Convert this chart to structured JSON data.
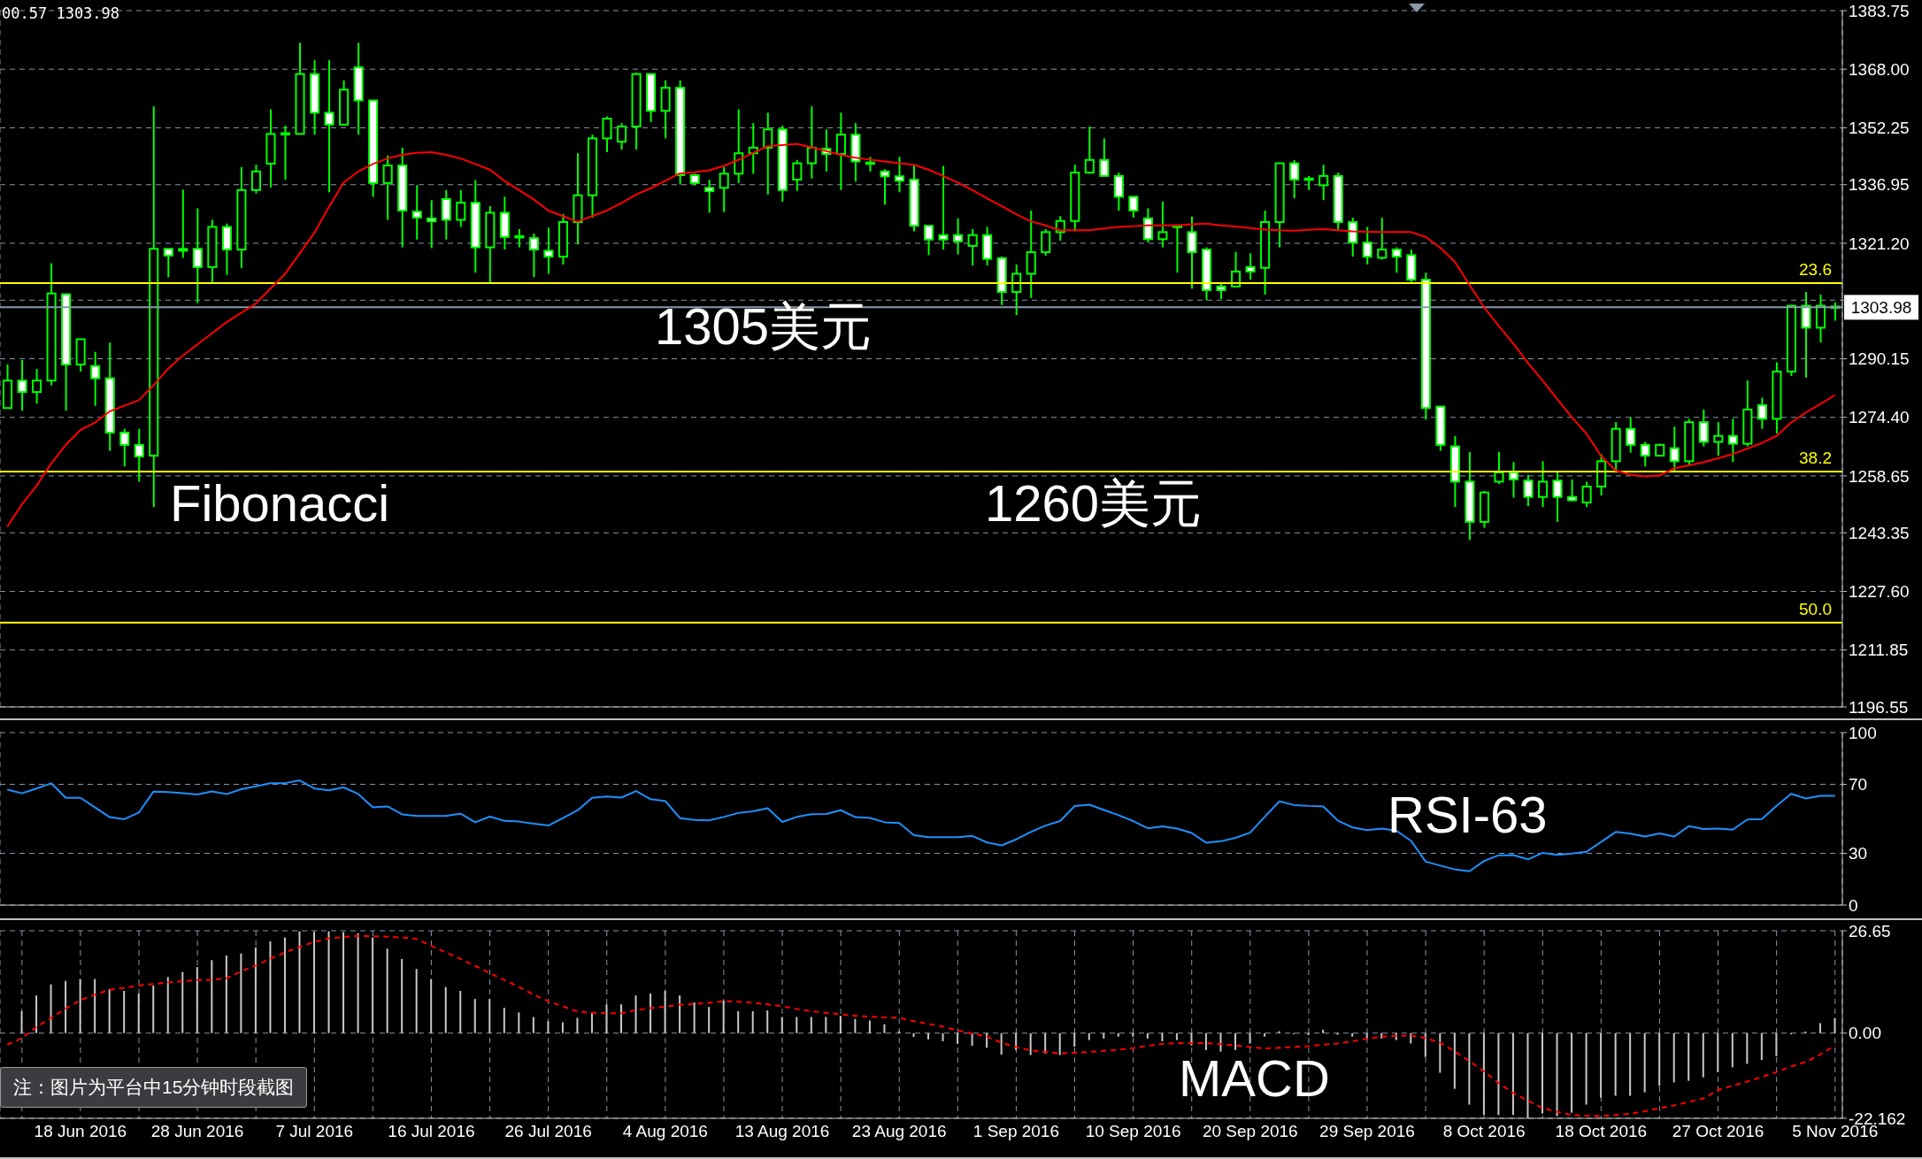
{
  "chart_data": [
    {
      "type": "candlestick",
      "color": "#00ff00",
      "categories": [
        null,
        null,
        null,
        null,
        null,
        null,
        null,
        null,
        null,
        null,
        null,
        null,
        null,
        null,
        null,
        null,
        null,
        null,
        null,
        null,
        null,
        null,
        null,
        null,
        null,
        null,
        null,
        null,
        null,
        null,
        null,
        null,
        null,
        null,
        null,
        null,
        null,
        null,
        null,
        null,
        null,
        null,
        null,
        null,
        null,
        null,
        null,
        null,
        null,
        null,
        null,
        null,
        null,
        null,
        null,
        null,
        null,
        null,
        null,
        null,
        null,
        null,
        null,
        null,
        null,
        null,
        null,
        null,
        null,
        null,
        null,
        null,
        null,
        null,
        null,
        null,
        null,
        null,
        null,
        null,
        null,
        null,
        null,
        null,
        null,
        null,
        null,
        null,
        null,
        null,
        null,
        null,
        null,
        null,
        null,
        null,
        null,
        null,
        null,
        null,
        null,
        null,
        null,
        null,
        null,
        null,
        null,
        null,
        null,
        null,
        null,
        null,
        null,
        null,
        null,
        null,
        null,
        null,
        null,
        null,
        null,
        null,
        null,
        null,
        null,
        null
      ],
      "ohlc": [
        [
          1276.9,
          1288.6,
          1276.9,
          1284.3
        ],
        [
          1284.3,
          1289.8,
          1276.2,
          1281.2
        ],
        [
          1281.2,
          1287.4,
          1278.1,
          1284.3
        ],
        [
          1284.3,
          1315.8,
          1283.0,
          1307.7
        ],
        [
          1307.5,
          1307.5,
          1276.2,
          1288.6
        ],
        [
          1288.6,
          1295.4,
          1286.7,
          1295.4
        ],
        [
          1288.2,
          1292.0,
          1277.5,
          1284.9
        ],
        [
          1284.9,
          1294.5,
          1265.4,
          1270.3
        ],
        [
          1270.3,
          1271.3,
          1261.2,
          1267.0
        ],
        [
          1267.0,
          1271.3,
          1257.1,
          1263.9
        ],
        [
          1264.1,
          1358.0,
          1250.3,
          1319.7
        ],
        [
          1319.7,
          1319.7,
          1312.1,
          1317.9
        ],
        [
          1319.7,
          1335.6,
          1317.3,
          1319.2
        ],
        [
          1319.7,
          1330.6,
          1305.1,
          1314.8
        ],
        [
          1314.8,
          1327.5,
          1310.6,
          1325.6
        ],
        [
          1325.6,
          1326.5,
          1312.7,
          1319.5
        ],
        [
          1319.5,
          1341.7,
          1314.5,
          1335.5
        ],
        [
          1335.5,
          1342.3,
          1334.6,
          1340.5
        ],
        [
          1342.6,
          1357.2,
          1336.2,
          1350.6
        ],
        [
          1350.6,
          1352.8,
          1338.3,
          1350.8
        ],
        [
          1350.6,
          1375.1,
          1350.6,
          1366.7
        ],
        [
          1366.7,
          1370.4,
          1350.4,
          1356.3
        ],
        [
          1356.3,
          1370.4,
          1334.9,
          1353.1
        ],
        [
          1353.1,
          1365.0,
          1352.8,
          1362.5
        ],
        [
          1368.5,
          1375.1,
          1350.4,
          1359.6
        ],
        [
          1359.6,
          1359.6,
          1333.7,
          1337.4
        ],
        [
          1337.4,
          1344.8,
          1327.5,
          1342.1
        ],
        [
          1342.1,
          1346.9,
          1320.1,
          1330.0
        ],
        [
          1329.7,
          1336.8,
          1322.2,
          1328.1
        ],
        [
          1327.9,
          1332.8,
          1319.9,
          1327.1
        ],
        [
          1333.1,
          1335.5,
          1322.2,
          1327.5
        ],
        [
          1327.5,
          1335.5,
          1325.6,
          1332.1
        ],
        [
          1332.1,
          1338.2,
          1313.3,
          1320.1
        ],
        [
          1320.1,
          1331.2,
          1310.6,
          1329.4
        ],
        [
          1329.4,
          1333.7,
          1319.5,
          1322.9
        ],
        [
          1322.9,
          1325.0,
          1320.1,
          1323.1
        ],
        [
          1322.6,
          1323.8,
          1312.1,
          1319.5
        ],
        [
          1319.2,
          1325.4,
          1313.0,
          1317.6
        ],
        [
          1317.6,
          1329.1,
          1315.5,
          1326.9
        ],
        [
          1326.9,
          1345.4,
          1320.9,
          1334.1
        ],
        [
          1334.1,
          1350.4,
          1328.1,
          1349.4
        ],
        [
          1349.4,
          1355.3,
          1345.7,
          1354.7
        ],
        [
          1348.5,
          1353.5,
          1346.4,
          1352.6
        ],
        [
          1352.6,
          1367.1,
          1346.4,
          1366.7
        ],
        [
          1366.7,
          1366.7,
          1353.8,
          1356.8
        ],
        [
          1356.8,
          1365.0,
          1349.4,
          1363.0
        ],
        [
          1363.0,
          1365.0,
          1337.0,
          1339.5
        ],
        [
          1339.5,
          1339.9,
          1336.8,
          1337.4
        ],
        [
          1336.1,
          1338.3,
          1329.4,
          1335.2
        ],
        [
          1336.1,
          1341.7,
          1329.6,
          1339.9
        ],
        [
          1339.9,
          1357.2,
          1337.4,
          1345.4
        ],
        [
          1345.4,
          1353.5,
          1339.9,
          1346.9
        ],
        [
          1346.9,
          1356.3,
          1334.3,
          1351.8
        ],
        [
          1351.8,
          1352.8,
          1332.4,
          1335.5
        ],
        [
          1338.3,
          1343.6,
          1335.3,
          1342.7
        ],
        [
          1342.7,
          1358.0,
          1338.6,
          1346.9
        ],
        [
          1346.6,
          1351.8,
          1340.5,
          1345.2
        ],
        [
          1345.2,
          1356.3,
          1335.5,
          1350.4
        ],
        [
          1350.4,
          1353.5,
          1337.8,
          1343.2
        ],
        [
          1342.9,
          1344.4,
          1340.5,
          1342.6
        ],
        [
          1340.5,
          1341.1,
          1331.6,
          1339.2
        ],
        [
          1339.2,
          1344.4,
          1334.9,
          1338.0
        ],
        [
          1338.3,
          1342.3,
          1324.4,
          1325.9
        ],
        [
          1325.9,
          1325.9,
          1318.0,
          1322.2
        ],
        [
          1323.4,
          1342.0,
          1319.5,
          1322.2
        ],
        [
          1323.4,
          1327.9,
          1318.2,
          1321.7
        ],
        [
          1320.5,
          1325.0,
          1315.2,
          1323.4
        ],
        [
          1323.4,
          1325.6,
          1315.2,
          1317.0
        ],
        [
          1317.2,
          1317.6,
          1304.6,
          1308.1
        ],
        [
          1308.1,
          1315.5,
          1301.9,
          1313.0
        ],
        [
          1313.0,
          1330.0,
          1306.5,
          1318.8
        ],
        [
          1318.8,
          1325.0,
          1317.9,
          1324.2
        ],
        [
          1324.2,
          1328.5,
          1321.9,
          1327.2
        ],
        [
          1327.2,
          1342.3,
          1324.4,
          1340.2
        ],
        [
          1340.2,
          1352.6,
          1339.9,
          1343.6
        ],
        [
          1343.6,
          1349.4,
          1339.3,
          1339.3
        ],
        [
          1339.3,
          1340.2,
          1330.0,
          1333.7
        ],
        [
          1333.7,
          1333.7,
          1328.1,
          1330.0
        ],
        [
          1327.9,
          1330.6,
          1321.4,
          1322.3
        ],
        [
          1322.3,
          1332.4,
          1320.1,
          1324.2
        ],
        [
          1325.7,
          1326.3,
          1313.3,
          1325.9
        ],
        [
          1324.2,
          1328.4,
          1309.0,
          1318.8
        ],
        [
          1319.5,
          1320.1,
          1305.9,
          1308.6
        ],
        [
          1309.6,
          1310.6,
          1306.2,
          1308.6
        ],
        [
          1309.6,
          1318.9,
          1309.3,
          1313.6
        ],
        [
          1314.8,
          1318.5,
          1311.4,
          1313.6
        ],
        [
          1314.6,
          1330.0,
          1307.4,
          1326.9
        ],
        [
          1326.9,
          1342.9,
          1320.1,
          1342.7
        ],
        [
          1342.7,
          1343.6,
          1333.3,
          1338.3
        ],
        [
          1338.5,
          1339.3,
          1335.5,
          1338.6
        ],
        [
          1336.8,
          1342.3,
          1332.8,
          1339.3
        ],
        [
          1339.3,
          1340.2,
          1324.7,
          1326.9
        ],
        [
          1326.9,
          1328.1,
          1317.6,
          1321.4
        ],
        [
          1321.4,
          1325.6,
          1315.5,
          1317.6
        ],
        [
          1317.3,
          1328.1,
          1316.8,
          1319.5
        ],
        [
          1319.5,
          1320.1,
          1313.3,
          1317.6
        ],
        [
          1318.0,
          1319.5,
          1310.8,
          1311.4
        ],
        [
          1311.4,
          1313.3,
          1273.8,
          1276.9
        ],
        [
          1277.3,
          1277.3,
          1265.4,
          1267.0
        ],
        [
          1266.6,
          1269.4,
          1250.3,
          1257.1
        ],
        [
          1257.1,
          1265.1,
          1241.4,
          1246.3
        ],
        [
          1246.3,
          1254.6,
          1244.7,
          1254.2
        ],
        [
          1257.1,
          1265.1,
          1256.5,
          1259.6
        ],
        [
          1259.6,
          1262.4,
          1252.8,
          1257.7
        ],
        [
          1257.4,
          1258.9,
          1250.5,
          1253.0
        ],
        [
          1253.0,
          1262.6,
          1250.3,
          1257.1
        ],
        [
          1257.4,
          1259.6,
          1246.3,
          1253.0
        ],
        [
          1253.0,
          1257.7,
          1251.8,
          1252.1
        ],
        [
          1251.5,
          1257.1,
          1250.3,
          1255.8
        ],
        [
          1255.8,
          1264.5,
          1253.4,
          1262.6
        ],
        [
          1262.6,
          1273.1,
          1259.6,
          1271.3
        ],
        [
          1271.3,
          1274.4,
          1264.9,
          1267.0
        ],
        [
          1267.0,
          1267.8,
          1261.2,
          1264.1
        ],
        [
          1264.1,
          1267.3,
          1263.9,
          1267.0
        ],
        [
          1266.1,
          1271.9,
          1260.0,
          1262.6
        ],
        [
          1262.6,
          1274.0,
          1261.7,
          1273.1
        ],
        [
          1273.1,
          1276.5,
          1266.6,
          1267.8
        ],
        [
          1267.8,
          1273.1,
          1264.1,
          1269.4
        ],
        [
          1269.4,
          1274.0,
          1262.4,
          1267.3
        ],
        [
          1267.3,
          1284.3,
          1266.6,
          1276.5
        ],
        [
          1277.7,
          1279.7,
          1271.3,
          1274.0
        ],
        [
          1274.0,
          1289.2,
          1270.1,
          1286.7
        ],
        [
          1286.7,
          1304.6,
          1285.5,
          1304.4
        ],
        [
          1304.4,
          1308.1,
          1285.1,
          1298.5
        ],
        [
          1298.5,
          1307.4,
          1294.5,
          1304.4
        ],
        [
          1304.2,
          1305.3,
          1300.4,
          1303.98
        ]
      ],
      "series": [
        {
          "type": "line",
          "color": "#ff0000",
          "values": [
            1245,
            1251,
            1256,
            1262,
            1267,
            1271,
            1273,
            1276,
            1277.5,
            1279,
            1283,
            1287.5,
            1291,
            1294,
            1297,
            1300,
            1302.5,
            1305,
            1309,
            1313,
            1318.5,
            1324,
            1331,
            1337.5,
            1340.5,
            1342.5,
            1344,
            1345,
            1345.5,
            1345.7,
            1345,
            1344,
            1342.5,
            1341,
            1338,
            1335.5,
            1333,
            1330,
            1328.5,
            1327,
            1328.5,
            1330,
            1332,
            1334.3,
            1336,
            1338,
            1340,
            1340.3,
            1340.8,
            1342,
            1343.6,
            1345.5,
            1347.3,
            1347.6,
            1347.9,
            1347,
            1346,
            1345,
            1344.2,
            1343.7,
            1343.2,
            1342.7,
            1342.3,
            1341,
            1339.3,
            1337.5,
            1335.5,
            1333.3,
            1331.2,
            1329,
            1327.1,
            1326,
            1324.7,
            1324.7,
            1324.7,
            1325.2,
            1325.6,
            1325.8,
            1326,
            1326,
            1326,
            1326.3,
            1326.5,
            1326,
            1325.7,
            1325.3,
            1324.9,
            1324.7,
            1324.6,
            1324.8,
            1325,
            1324.7,
            1324.4,
            1324.3,
            1324.2,
            1324.2,
            1324.2,
            1322.9,
            1320,
            1316.2,
            1310,
            1304,
            1299,
            1294.2,
            1289,
            1284.3,
            1279.3,
            1274.4,
            1270,
            1264,
            1260.1,
            1259,
            1258.5,
            1258.8,
            1260.7,
            1261.5,
            1262.3,
            1263.4,
            1264.5,
            1266,
            1267.5,
            1269.4,
            1273,
            1275.7,
            1278,
            1280.4
          ]
        }
      ],
      "ylim": [
        1196.55,
        1383.75
      ],
      "yticks": [
        1196.55,
        1211.85,
        {
          "value": 1227.6,
          "label": "1227.60"
        },
        1243.35,
        1258.65,
        {
          "value": 1274.4,
          "label": "1274.40"
        },
        1290.15,
        {
          "value": 1305.9,
          "label": null
        },
        {
          "value": 1321.2,
          "label": "1321.20"
        },
        1336.95,
        1352.25,
        {
          "value": 1368,
          "label": "1368.00"
        },
        1383.75
      ],
      "grid": true,
      "tick_labels": "y",
      "ref_lines": [
        {
          "axis": "y",
          "value": 1310.5,
          "color": "#ffff00"
        },
        {
          "axis": "y",
          "value": 1259.8,
          "color": "#ffff00"
        },
        {
          "axis": "y",
          "value": 1219.2,
          "color": "#ffff00"
        },
        {
          "axis": "y",
          "value": 1303.98,
          "label": "1303.98",
          "color": "#8899aa"
        }
      ],
      "annotations": [
        "00.57 1303.98",
        "1305美元",
        "Fibonacci",
        "1260美元",
        {
          "text": "23.6",
          "y": 1310.5
        },
        {
          "text": "38.2",
          "y": 1259.8
        },
        {
          "text": "50.0",
          "y": 1219.2
        }
      ]
    },
    {
      "type": "line",
      "categories": [
        null,
        null,
        null,
        null,
        null,
        null,
        null,
        null,
        null,
        null,
        null,
        null,
        null,
        null,
        null,
        null,
        null,
        null,
        null,
        null,
        null,
        null,
        null,
        null,
        null,
        null,
        null,
        null,
        null,
        null,
        null,
        null,
        null,
        null,
        null,
        null,
        null,
        null,
        null,
        null,
        null,
        null,
        null,
        null,
        null,
        null,
        null,
        null,
        null,
        null,
        null,
        null,
        null,
        null,
        null,
        null,
        null,
        null,
        null,
        null,
        null,
        null,
        null,
        null,
        null,
        null,
        null,
        null,
        null,
        null,
        null,
        null,
        null,
        null,
        null,
        null,
        null,
        null,
        null,
        null,
        null,
        null,
        null,
        null,
        null,
        null,
        null,
        null,
        null,
        null,
        null,
        null,
        null,
        null,
        null,
        null,
        null,
        null,
        null,
        null,
        null,
        null,
        null,
        null,
        null,
        null,
        null,
        null,
        null,
        null,
        null,
        null,
        null,
        null,
        null,
        null,
        null,
        null,
        null,
        null,
        null,
        null,
        null,
        null,
        null,
        null
      ],
      "series": [
        {
          "color": "#1e90ff",
          "values": [
            66.9,
            64.8,
            67.6,
            70.6,
            62.2,
            62.2,
            56.6,
            51.0,
            49.8,
            53.7,
            65.8,
            65.5,
            64.9,
            64.1,
            65.9,
            64.3,
            67.2,
            68.8,
            70.6,
            70.7,
            72.3,
            67.6,
            66.5,
            68.2,
            64.4,
            56.7,
            57.2,
            52.6,
            51.7,
            51.7,
            51.7,
            53.0,
            48.0,
            51.3,
            48.8,
            48.4,
            47.2,
            46.1,
            50.5,
            54.9,
            62.2,
            63.0,
            62.3,
            66.1,
            61.4,
            60.3,
            50.4,
            49.4,
            49.1,
            51.1,
            53.4,
            54.4,
            56.2,
            48.2,
            51.1,
            52.7,
            52.8,
            55.0,
            51.0,
            50.5,
            48.0,
            47.6,
            40.5,
            39.4,
            39.3,
            39.3,
            40.1,
            36.3,
            34.6,
            38.1,
            42.4,
            46.1,
            48.7,
            57.4,
            58.2,
            55.1,
            52.1,
            48.7,
            44.5,
            45.6,
            44.4,
            41.8,
            36.1,
            37.0,
            39.0,
            42.0,
            51.2,
            60.1,
            58.0,
            57.5,
            57.2,
            48.9,
            45.0,
            43.5,
            44.3,
            43.1,
            37.3,
            25.2,
            22.9,
            20.7,
            19.6,
            25.6,
            28.9,
            29.0,
            26.5,
            30.3,
            29.1,
            29.9,
            30.9,
            36.6,
            42.4,
            41.4,
            39.7,
            41.5,
            39.7,
            45.8,
            44.1,
            44.3,
            43.7,
            49.6,
            49.9,
            57.6,
            64.5,
            61.8,
            63.3,
            63.3
          ]
        }
      ],
      "ylim": [
        0,
        100
      ],
      "yticks": [
        0,
        30,
        70,
        100
      ],
      "grid": true,
      "tick_labels": "y",
      "annotations": [
        "RSI-63"
      ]
    },
    {
      "type": "bar",
      "categories": [
        null,
        null,
        null,
        null,
        null,
        "18 Jun 2016",
        null,
        null,
        null,
        null,
        null,
        null,
        null,
        "28 Jun 2016",
        null,
        null,
        null,
        null,
        null,
        null,
        null,
        "7 Jul 2016",
        null,
        null,
        null,
        null,
        null,
        null,
        null,
        "16 Jul 2016",
        null,
        null,
        null,
        null,
        null,
        null,
        null,
        "26 Jul 2016",
        null,
        null,
        null,
        null,
        null,
        null,
        null,
        "4 Aug 2016",
        null,
        null,
        null,
        null,
        null,
        null,
        null,
        "13 Aug 2016",
        null,
        null,
        null,
        null,
        null,
        null,
        null,
        "23 Aug 2016",
        null,
        null,
        null,
        null,
        null,
        null,
        null,
        "1 Sep 2016",
        null,
        null,
        null,
        null,
        null,
        null,
        null,
        "10 Sep 2016",
        null,
        null,
        null,
        null,
        null,
        null,
        null,
        "20 Sep 2016",
        null,
        null,
        null,
        null,
        null,
        null,
        null,
        "29 Sep 2016",
        null,
        null,
        null,
        null,
        null,
        null,
        null,
        "8 Oct 2016",
        null,
        null,
        null,
        null,
        null,
        null,
        null,
        "18 Oct 2016",
        null,
        null,
        null,
        null,
        null,
        null,
        null,
        "27 Oct 2016",
        null,
        null,
        null,
        null,
        null,
        null,
        null,
        "5 Nov 2016"
      ],
      "series": [
        {
          "color": "#c8c8c8",
          "values": [
            null,
            5.7,
            9.8,
            12.7,
            13.6,
            14.1,
            14.1,
            11.5,
            11.0,
            10.3,
            12.4,
            14.6,
            15.9,
            17.2,
            19.0,
            20.2,
            20.7,
            22.3,
            23.9,
            24.9,
            26.5,
            26.3,
            26.5,
            26.3,
            26.0,
            24.9,
            22.0,
            19.3,
            16.7,
            14.1,
            12.0,
            11.0,
            8.9,
            8.9,
            6.6,
            5.4,
            4.2,
            3.1,
            2.8,
            4.0,
            5.4,
            7.5,
            7.5,
            9.8,
            10.3,
            11.0,
            9.8,
            8.0,
            6.8,
            8.5,
            5.7,
            5.7,
            5.9,
            4.2,
            4.2,
            4.2,
            4.2,
            4.5,
            3.7,
            3.3,
            2.3,
            0.5,
            -1.0,
            -1.6,
            -2.1,
            -2.8,
            -3.3,
            -3.8,
            -5.6,
            -4.4,
            -5.7,
            -5.3,
            -5.7,
            -3.5,
            -1.8,
            -1.4,
            -0.9,
            -0.9,
            -1.4,
            -2.1,
            -1.8,
            -3.2,
            -4.4,
            -4.8,
            -4.4,
            -2.7,
            -0.9,
            0.5,
            -0.3,
            -0.5,
            0.9,
            -0.4,
            -0.9,
            -1.4,
            -1.4,
            -1.8,
            -2.7,
            -6.2,
            -10.3,
            -14.5,
            -18.6,
            -21.3,
            -21.3,
            -21.3,
            -22.1,
            -20.9,
            -21.6,
            -20.7,
            -18.6,
            -16.8,
            -16.3,
            -16.3,
            -15.4,
            -13.7,
            -12.8,
            -12.4,
            -11.5,
            -10.1,
            -8.9,
            -8.0,
            -7.0,
            -6.0,
            -0.3,
            0.4,
            2.6,
            3.9
          ]
        },
        {
          "type": "line",
          "color": "#ff0000",
          "line_style": "dashed",
          "values": [
            -3.0,
            -1.3,
            1.6,
            4.0,
            6.4,
            8.6,
            10.0,
            11.3,
            11.8,
            12.4,
            12.8,
            13.2,
            13.5,
            13.8,
            13.9,
            14.3,
            16.1,
            17.6,
            19.4,
            21.0,
            22.5,
            23.7,
            24.7,
            25.0,
            25.3,
            25.2,
            25.1,
            24.9,
            24.5,
            22.7,
            21.0,
            19.3,
            17.5,
            15.6,
            13.8,
            12.0,
            10.0,
            8.3,
            7.0,
            5.6,
            5.3,
            5.2,
            5.2,
            6.0,
            6.5,
            6.9,
            7.4,
            7.6,
            7.9,
            8.3,
            8.2,
            7.9,
            7.5,
            7.0,
            6.3,
            5.7,
            5.3,
            4.9,
            4.5,
            4.3,
            4.1,
            4.0,
            3.1,
            2.4,
            1.7,
            0.7,
            -0.1,
            -0.9,
            -2.5,
            -3.6,
            -4.5,
            -4.9,
            -5.3,
            -5.1,
            -4.9,
            -4.6,
            -4.3,
            -3.9,
            -3.3,
            -2.8,
            -2.6,
            -2.6,
            -2.6,
            -2.9,
            -3.2,
            -3.6,
            -4.0,
            -3.8,
            -3.6,
            -3.4,
            -3.0,
            -2.7,
            -2.1,
            -1.5,
            -0.9,
            -0.7,
            -0.6,
            -1.3,
            -2.5,
            -4.8,
            -7.3,
            -10.0,
            -13.0,
            -15.6,
            -17.6,
            -19.5,
            -20.5,
            -21.3,
            -21.5,
            -21.6,
            -21.3,
            -21.0,
            -20.3,
            -19.5,
            -18.8,
            -17.9,
            -17.0,
            -14.8,
            -13.7,
            -12.6,
            -11.4,
            -10.1,
            -8.7,
            -7.5,
            -5.5,
            -3.2
          ]
        }
      ],
      "ylim": [
        -22.162,
        26.65
      ],
      "yticks": [
        -22.162,
        {
          "value": 0,
          "label": "0.00"
        },
        26.65
      ],
      "grid": true,
      "annotations": [
        "MACD",
        "注：图片为平台中15分钟时段截图"
      ]
    }
  ]
}
